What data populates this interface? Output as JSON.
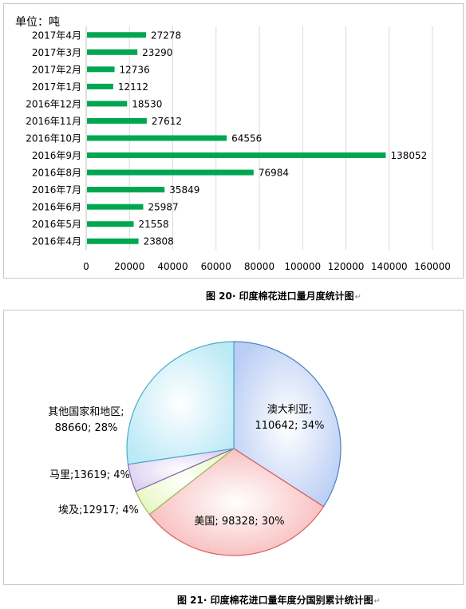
{
  "bar_chart": {
    "unit_label": "单位：吨",
    "caption": "图 20· 印度棉花进口量月度统计图",
    "caption_mark": "↵"
  },
  "pie_chart": {
    "caption": "图 21· 印度棉花进口量年度分国别累计统计图",
    "caption_mark": "↵"
  },
  "chart_data": [
    {
      "type": "bar",
      "orientation": "horizontal",
      "categories": [
        "2017年4月",
        "2017年3月",
        "2017年2月",
        "2017年1月",
        "2016年12月",
        "2016年11月",
        "2016年10月",
        "2016年9月",
        "2016年8月",
        "2016年7月",
        "2016年6月",
        "2016年5月",
        "2016年4月"
      ],
      "values": [
        27278,
        23290,
        12736,
        12112,
        18530,
        27612,
        64556,
        138052,
        76984,
        35849,
        25987,
        21558,
        23808
      ],
      "xlim": [
        0,
        160000
      ],
      "xticks": [
        0,
        20000,
        40000,
        60000,
        80000,
        100000,
        120000,
        140000,
        160000
      ],
      "grid": "vertical",
      "bar_color": "#00a650",
      "data_labels": true
    },
    {
      "type": "pie",
      "labels": [
        "澳大利亚",
        "美国",
        "埃及",
        "马里",
        "其他国家和地区"
      ],
      "values": [
        110642,
        98328,
        12917,
        13619,
        88660
      ],
      "percent_labels": [
        "34%",
        "30%",
        "4%",
        "4%",
        "28%"
      ],
      "colors": [
        "#b9cdf5",
        "#f7b5b5",
        "#e6f7bf",
        "#d8cdf0",
        "#bce9f6"
      ],
      "edge_colors": [
        "#4f81bd",
        "#d75f5f",
        "#9bbb59",
        "#8064a2",
        "#4bacc6"
      ]
    }
  ]
}
